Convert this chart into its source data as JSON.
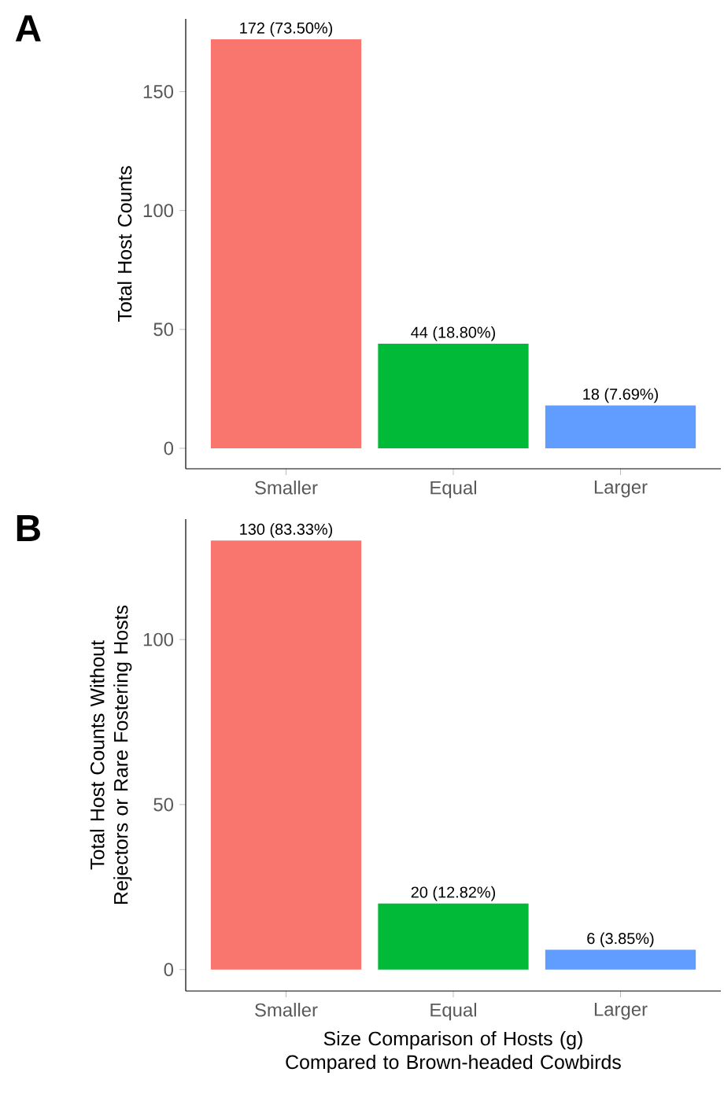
{
  "chart_data": [
    {
      "type": "bar",
      "ylabel": "Total Host Counts",
      "categories": [
        "Smaller",
        "Equal",
        "Larger"
      ],
      "values": [
        172,
        44,
        18
      ],
      "colors": [
        "#f8766d",
        "#00ba38",
        "#619cff"
      ],
      "value_labels": [
        "172 (73.50%)",
        "44 (18.80%)",
        "18 (7.69%)"
      ],
      "ylim": [
        -8.6,
        180.6
      ],
      "yticks": [
        0,
        50,
        100,
        150
      ],
      "grid": false,
      "annotations": [
        "A"
      ]
    },
    {
      "type": "bar",
      "ylabel": "Total Host Counts Without Rejectors or Rare Fostering Hosts",
      "xlabel": "Size Comparison of Hosts (g) Compared to Brown-headed Cowbirds",
      "categories": [
        "Smaller",
        "Equal",
        "Larger"
      ],
      "values": [
        130,
        20,
        6
      ],
      "colors": [
        "#f8766d",
        "#00ba38",
        "#619cff"
      ],
      "value_labels": [
        "130 (83.33%)",
        "20 (12.82%)",
        "6 (3.85%)"
      ],
      "ylim": [
        -6.5,
        136.5
      ],
      "yticks": [
        0,
        50,
        100
      ],
      "grid": false,
      "annotations": [
        "B"
      ]
    }
  ]
}
